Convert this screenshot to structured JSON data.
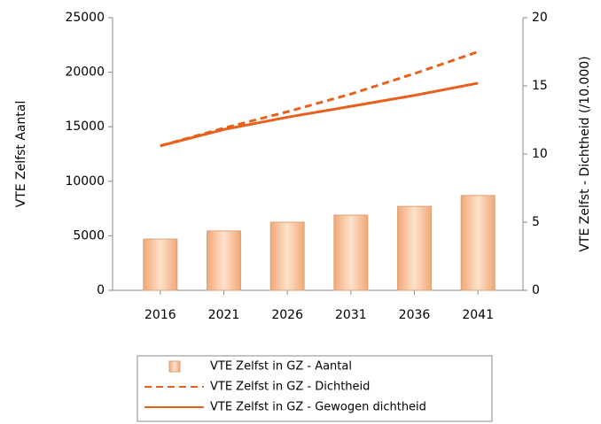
{
  "chart_data": {
    "type": "bar-line",
    "categories": [
      "2016",
      "2021",
      "2026",
      "2031",
      "2036",
      "2041"
    ],
    "ylabel": "VTE Zelfst Aantal",
    "y2label": "VTE Zelfst - Dichtheid (/10.000)",
    "ylim": [
      0,
      25000
    ],
    "yticks": [
      0,
      5000,
      10000,
      15000,
      20000,
      25000
    ],
    "y2lim": [
      0,
      20
    ],
    "y2ticks": [
      0,
      5,
      10,
      15,
      20
    ],
    "legend": "bottom",
    "series": [
      {
        "name": "VTE Zelfst in GZ - Aantal",
        "type": "bar",
        "color": "#f7bb8f",
        "values": [
          4700,
          5450,
          6250,
          6900,
          7700,
          8700
        ]
      },
      {
        "name": "VTE Zelfst in GZ - Dichtheid",
        "type": "dashed",
        "axis": "y2",
        "color": "#e8601c",
        "values": [
          10.6,
          11.9,
          13.1,
          14.4,
          15.9,
          17.5
        ]
      },
      {
        "name": "VTE Zelfst in GZ - Gewogen dichtheid",
        "type": "line",
        "axis": "y2",
        "color": "#e8601c",
        "values": [
          10.6,
          11.8,
          12.7,
          13.5,
          14.3,
          15.2
        ]
      }
    ]
  }
}
